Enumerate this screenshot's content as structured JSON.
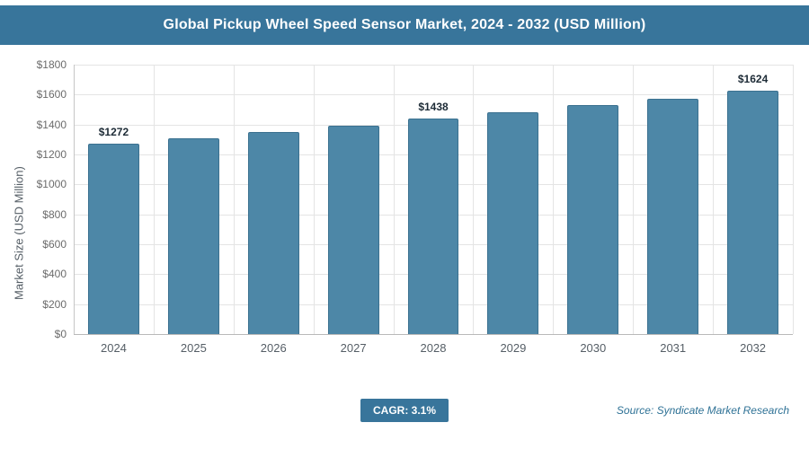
{
  "header": {
    "title": "Global Pickup Wheel Speed Sensor Market, 2024 - 2032 (USD Million)"
  },
  "footer": {
    "cagr_label": "CAGR: 3.1%",
    "source": "Source: Syndicate Market Research"
  },
  "chart_data": {
    "type": "bar",
    "title": "Global Pickup Wheel Speed Sensor Market, 2024 - 2032 (USD Million)",
    "xlabel": "",
    "ylabel": "Market Size (USD Million)",
    "ylim": [
      0,
      1800
    ],
    "ytick_step": 200,
    "ytick_prefix": "$",
    "grid": true,
    "legend": false,
    "categories": [
      "2024",
      "2025",
      "2026",
      "2027",
      "2028",
      "2029",
      "2030",
      "2031",
      "2032"
    ],
    "values": [
      1272,
      1311,
      1352,
      1394,
      1438,
      1482,
      1528,
      1575,
      1624
    ],
    "data_labels": [
      "$1272",
      "",
      "",
      "",
      "$1438",
      "",
      "",
      "",
      "$1624"
    ],
    "bar_color": "#4d87a7",
    "accent_color": "#38759b"
  }
}
